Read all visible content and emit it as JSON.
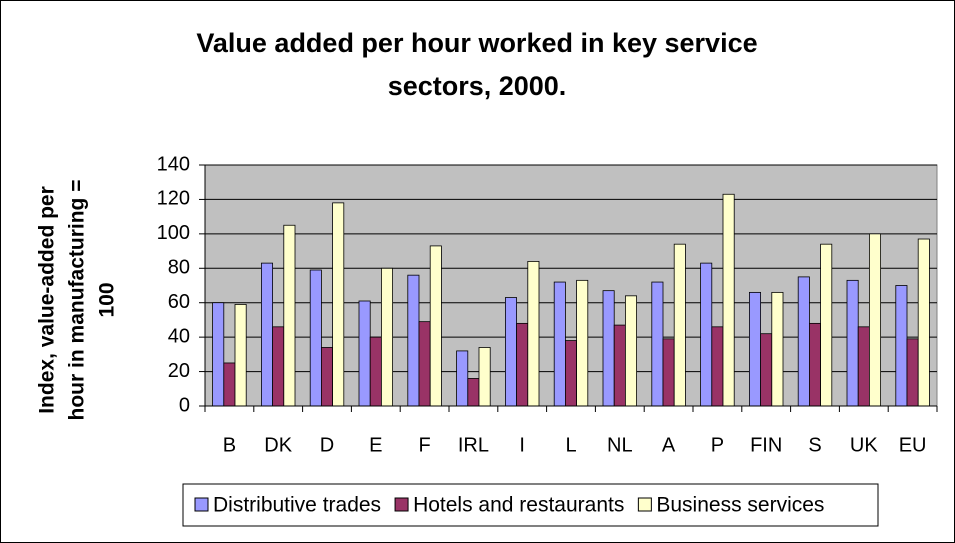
{
  "chart_data": {
    "type": "bar",
    "title": [
      "Value added per hour worked in key service",
      "sectors, 2000."
    ],
    "ylabel": [
      "Index, value-added per",
      "hour in manufacturing =",
      "100"
    ],
    "categories": [
      "B",
      "DK",
      "D",
      "E",
      "F",
      "IRL",
      "I",
      "L",
      "NL",
      "A",
      "P",
      "FIN",
      "S",
      "UK",
      "EU"
    ],
    "series": [
      {
        "name": "Distributive trades",
        "color": "#9999ff",
        "values": [
          60,
          83,
          79,
          61,
          76,
          32,
          63,
          72,
          67,
          72,
          83,
          66,
          75,
          73,
          70
        ]
      },
      {
        "name": "Hotels and restaurants",
        "color": "#993366",
        "values": [
          25,
          46,
          34,
          40,
          49,
          16,
          48,
          38,
          47,
          39,
          46,
          42,
          48,
          46,
          39
        ]
      },
      {
        "name": "Business services",
        "color": "#ffffcc",
        "values": [
          59,
          105,
          118,
          80,
          93,
          34,
          84,
          73,
          64,
          94,
          123,
          66,
          94,
          100,
          97
        ]
      }
    ],
    "ylim": [
      0,
      140
    ],
    "yticks": [
      0,
      20,
      40,
      60,
      80,
      100,
      120,
      140
    ],
    "grid": true,
    "legend": "bottom"
  }
}
